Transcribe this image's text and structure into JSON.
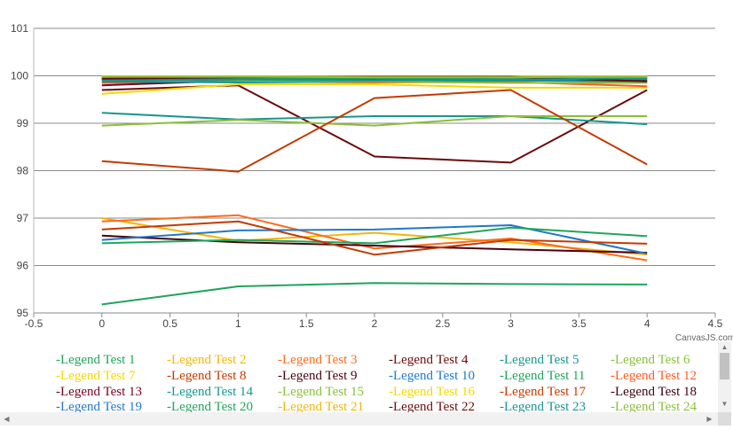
{
  "chart_data": {
    "type": "line",
    "title": "",
    "xlabel": "",
    "ylabel": "",
    "xlim": [
      -0.5,
      4.5
    ],
    "ylim": [
      95,
      101
    ],
    "x_ticks": [
      "-0.5",
      "0",
      "0.5",
      "1",
      "1.5",
      "2",
      "2.5",
      "3",
      "3.5",
      "4",
      "4.5"
    ],
    "y_ticks": [
      "95",
      "96",
      "97",
      "98",
      "99",
      "100",
      "101"
    ],
    "grid": "horizontal",
    "legend_placement": "bottom",
    "x": [
      0,
      1,
      2,
      3,
      4
    ],
    "series": [
      {
        "name": "-Legend Test 1",
        "color": "#1fa55b",
        "values": [
          95.18,
          95.56,
          95.63,
          95.61,
          95.6
        ]
      },
      {
        "name": "-Legend Test 2",
        "color": "#f2b705",
        "values": [
          97.0,
          96.52,
          96.69,
          96.49,
          96.23
        ]
      },
      {
        "name": "-Legend Test 3",
        "color": "#ff6a1a",
        "values": [
          96.93,
          97.06,
          96.36,
          96.57,
          96.11
        ]
      },
      {
        "name": "-Legend Test 4",
        "color": "#6b0a0a",
        "values": [
          99.7,
          99.8,
          98.3,
          98.17,
          99.7
        ]
      },
      {
        "name": "-Legend Test 5",
        "color": "#17968f",
        "values": [
          99.22,
          99.08,
          99.15,
          99.15,
          98.98
        ]
      },
      {
        "name": "-Legend Test 6",
        "color": "#8bbf3a",
        "values": [
          98.95,
          99.07,
          98.95,
          99.15,
          99.15
        ]
      },
      {
        "name": "-Legend Test 7",
        "color": "#f5d800",
        "values": [
          99.62,
          99.82,
          99.82,
          99.75,
          99.75
        ]
      },
      {
        "name": "-Legend Test 8",
        "color": "#c43a00",
        "values": [
          98.2,
          97.98,
          99.53,
          99.7,
          98.13
        ]
      },
      {
        "name": "-Legend Test 9",
        "color": "#4a0010",
        "values": [
          96.63,
          96.49,
          96.42,
          96.34,
          96.27
        ]
      },
      {
        "name": "-Legend Test 10",
        "color": "#1f78c8",
        "values": [
          96.54,
          96.74,
          96.76,
          96.85,
          96.25
        ]
      },
      {
        "name": "-Legend Test 11",
        "color": "#1fa55b",
        "values": [
          96.47,
          96.54,
          96.47,
          96.8,
          96.62
        ]
      },
      {
        "name": "-Legend Test 12",
        "color": "#ff5a1f",
        "values": [
          99.85,
          99.88,
          99.86,
          99.87,
          99.78
        ]
      },
      {
        "name": "-Legend Test 13",
        "color": "#7a0020",
        "values": [
          99.8,
          99.9,
          99.92,
          99.94,
          99.9
        ]
      },
      {
        "name": "-Legend Test 14",
        "color": "#17968f",
        "values": [
          99.88,
          99.86,
          99.88,
          99.9,
          99.88
        ]
      },
      {
        "name": "-Legend Test 15",
        "color": "#8bbf3a",
        "values": [
          99.93,
          99.9,
          99.88,
          99.85,
          99.85
        ]
      },
      {
        "name": "-Legend Test 16",
        "color": "#f5d800",
        "values": [
          99.96,
          99.95,
          99.96,
          99.95,
          99.97
        ]
      },
      {
        "name": "-Legend Test 17",
        "color": "#c43a00",
        "values": [
          96.76,
          96.93,
          96.23,
          96.54,
          96.46
        ]
      },
      {
        "name": "-Legend Test 18",
        "color": "#3c0010",
        "values": [
          99.95,
          99.97,
          99.97,
          99.98,
          99.96
        ]
      },
      {
        "name": "-Legend Test 19",
        "color": "#1f78c8",
        "values": [
          99.92,
          99.93,
          99.94,
          99.92,
          99.93
        ]
      },
      {
        "name": "-Legend Test 20",
        "color": "#1fa55b",
        "values": [
          99.97,
          99.96,
          99.95,
          99.96,
          99.94
        ]
      },
      {
        "name": "-Legend Test 21",
        "color": "#f2b705",
        "values": [
          99.99,
          99.99,
          99.99,
          99.99,
          99.99
        ]
      },
      {
        "name": "-Legend Test 22",
        "color": "#6b0a0a",
        "values": [
          99.94,
          99.97,
          99.98,
          99.98,
          99.88
        ]
      },
      {
        "name": "-Legend Test 23",
        "color": "#17968f",
        "values": [
          99.9,
          99.92,
          99.9,
          99.92,
          99.95
        ]
      },
      {
        "name": "-Legend Test 24",
        "color": "#8bbf3a",
        "values": [
          99.98,
          99.98,
          99.97,
          99.97,
          99.98
        ]
      }
    ]
  },
  "credit": "CanvasJS.com"
}
